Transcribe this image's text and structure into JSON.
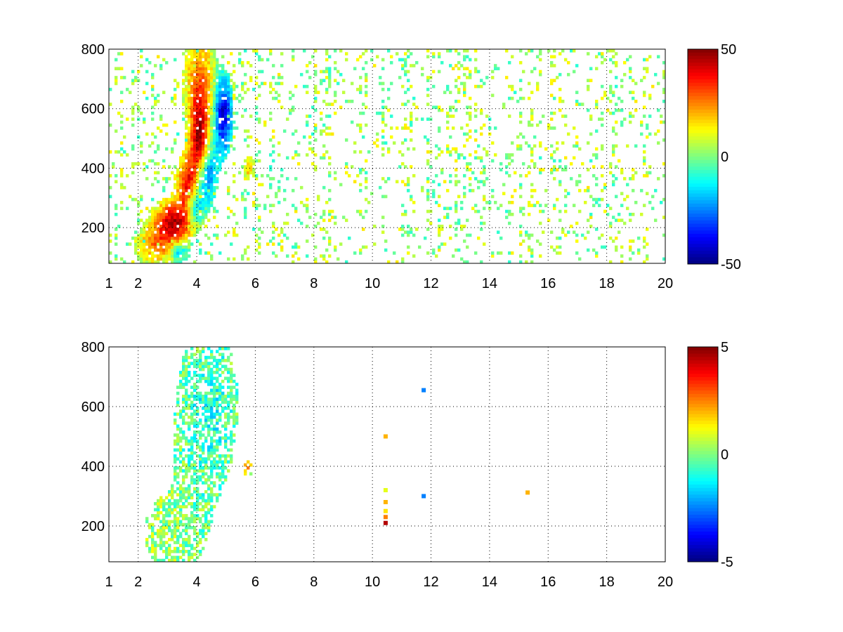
{
  "figure": {
    "background": "#ffffff"
  },
  "colormap": "jet",
  "chart_data": [
    {
      "type": "heatmap",
      "title": "",
      "xlabel": "",
      "ylabel": "",
      "xlim": [
        1,
        20
      ],
      "ylim": [
        80,
        800
      ],
      "xticks": [
        1,
        2,
        4,
        6,
        8,
        10,
        12,
        14,
        16,
        18,
        20
      ],
      "yticks": [
        200,
        400,
        600,
        800
      ],
      "colorbar": {
        "range": [
          -50,
          50
        ],
        "ticks": [
          50,
          0,
          -50
        ]
      },
      "grid": true,
      "blobs": [
        {
          "x": 3.2,
          "y": 220,
          "sx": 0.45,
          "sy": 50,
          "v": 42
        },
        {
          "x": 3.7,
          "y": 340,
          "sx": 0.25,
          "sy": 70,
          "v": 38
        },
        {
          "x": 4.1,
          "y": 480,
          "sx": 0.22,
          "sy": 90,
          "v": 45
        },
        {
          "x": 4.1,
          "y": 680,
          "sx": 0.35,
          "sy": 110,
          "v": 28
        },
        {
          "x": 2.6,
          "y": 140,
          "sx": 0.45,
          "sy": 45,
          "v": 22
        },
        {
          "x": 4.9,
          "y": 580,
          "sx": 0.22,
          "sy": 90,
          "v": -42
        },
        {
          "x": 4.3,
          "y": 380,
          "sx": 0.25,
          "sy": 70,
          "v": -32
        },
        {
          "x": 3.9,
          "y": 270,
          "sx": 0.2,
          "sy": 40,
          "v": -30
        },
        {
          "x": 3.4,
          "y": 120,
          "sx": 0.2,
          "sy": 20,
          "v": -22
        },
        {
          "x": 5.8,
          "y": 400,
          "sx": 0.12,
          "sy": 25,
          "v": 20
        }
      ],
      "noise": {
        "mean": 3,
        "amplitude": 12,
        "coverage": 0.22
      }
    },
    {
      "type": "heatmap",
      "title": "",
      "xlabel": "",
      "ylabel": "",
      "xlim": [
        1,
        20
      ],
      "ylim": [
        80,
        800
      ],
      "xticks": [
        1,
        2,
        4,
        6,
        8,
        10,
        12,
        14,
        16,
        18,
        20
      ],
      "yticks": [
        200,
        400,
        600,
        800
      ],
      "colorbar": {
        "range": [
          -5,
          5
        ],
        "ticks": [
          5,
          0,
          -5
        ]
      },
      "grid": true,
      "blobs": [
        {
          "x": 3.0,
          "y": 180,
          "sx": 0.55,
          "sy": 80,
          "v": 0.4
        },
        {
          "x": 3.9,
          "y": 450,
          "sx": 0.45,
          "sy": 220,
          "v": -0.3
        },
        {
          "x": 4.6,
          "y": 600,
          "sx": 0.55,
          "sy": 180,
          "v": -0.8
        },
        {
          "x": 5.75,
          "y": 395,
          "sx": 0.12,
          "sy": 18,
          "v": 2.5
        }
      ],
      "points": [
        {
          "x": 10.45,
          "y": 500,
          "v": 2
        },
        {
          "x": 10.45,
          "y": 320,
          "v": 1
        },
        {
          "x": 10.45,
          "y": 280,
          "v": 2
        },
        {
          "x": 10.45,
          "y": 250,
          "v": 1.5
        },
        {
          "x": 10.45,
          "y": 230,
          "v": 2.5
        },
        {
          "x": 10.45,
          "y": 210,
          "v": 4.5
        },
        {
          "x": 11.75,
          "y": 655,
          "v": -2.5
        },
        {
          "x": 11.75,
          "y": 300,
          "v": -2.5
        },
        {
          "x": 15.3,
          "y": 312,
          "v": 2
        }
      ]
    }
  ]
}
